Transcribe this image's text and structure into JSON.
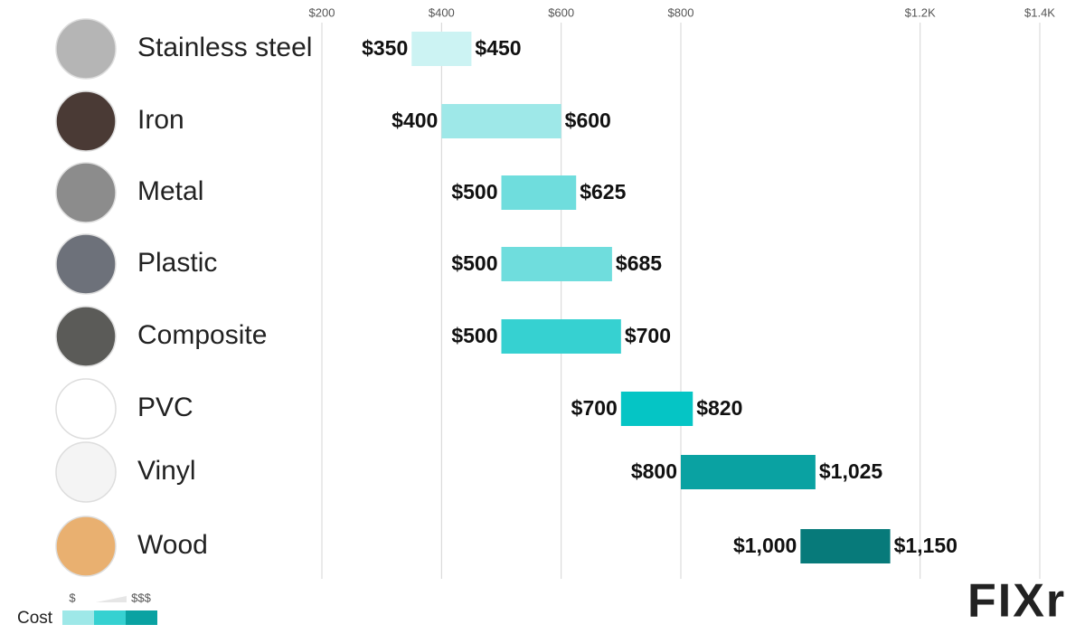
{
  "chart_data": {
    "type": "range_bar",
    "categories": [
      "Stainless steel",
      "Iron",
      "Metal",
      "Plastic",
      "Composite",
      "PVC",
      "Vinyl",
      "Wood"
    ],
    "low": [
      350,
      400,
      500,
      500,
      500,
      700,
      800,
      1000
    ],
    "high": [
      450,
      600,
      625,
      685,
      700,
      820,
      1025,
      1150
    ],
    "low_labels": [
      "$350",
      "$400",
      "$500",
      "$500",
      "$500",
      "$700",
      "$800",
      "$1,000"
    ],
    "high_labels": [
      "$450",
      "$600",
      "$625",
      "$685",
      "$700",
      "$820",
      "$1,025",
      "$1,150"
    ],
    "colors": [
      "#ccf3f3",
      "#9ee8e8",
      "#6fdddd",
      "#6fdddd",
      "#36d1d1",
      "#05c5c5",
      "#0aa2a2",
      "#077a7a"
    ],
    "xlim": [
      200,
      1400
    ],
    "xticks": [
      {
        "value": 200,
        "label": "$200"
      },
      {
        "value": 400,
        "label": "$400"
      },
      {
        "value": 600,
        "label": "$600"
      },
      {
        "value": 800,
        "label": "$800"
      },
      {
        "value": 1200,
        "label": "$1.2K"
      },
      {
        "value": 1400,
        "label": "$1.4K"
      }
    ],
    "grid": true,
    "legend": {
      "title": "Cost",
      "min_label": "$",
      "max_label": "$$$",
      "colors": [
        "#9ee8e8",
        "#36d1d1",
        "#0aa2a2"
      ]
    },
    "logo": "FIXr"
  }
}
